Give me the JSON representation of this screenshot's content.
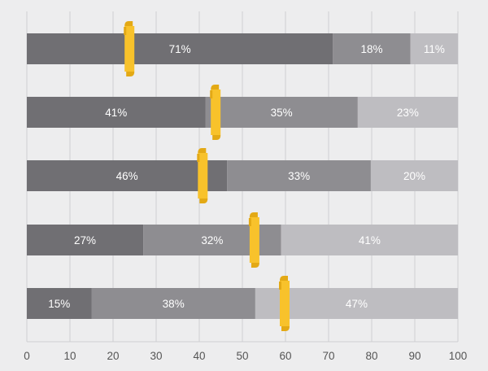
{
  "chart_data": {
    "type": "bar",
    "orientation": "horizontal",
    "stacked": true,
    "rows": [
      {
        "values": [
          71,
          18,
          11
        ],
        "labels": [
          "71%",
          "18%",
          "11%"
        ],
        "marker": 24
      },
      {
        "values": [
          41,
          35,
          23
        ],
        "labels": [
          "41%",
          "35%",
          "23%"
        ],
        "marker": 44
      },
      {
        "values": [
          46,
          33,
          20
        ],
        "labels": [
          "46%",
          "33%",
          "20%"
        ],
        "marker": 41
      },
      {
        "values": [
          27,
          32,
          41
        ],
        "labels": [
          "27%",
          "32%",
          "41%"
        ],
        "marker": 53
      },
      {
        "values": [
          15,
          38,
          47
        ],
        "labels": [
          "15%",
          "38%",
          "47%"
        ],
        "marker": 60
      }
    ],
    "xlim": [
      0,
      100
    ],
    "xticks": [
      "0",
      "10",
      "20",
      "30",
      "40",
      "50",
      "60",
      "70",
      "80",
      "90",
      "100"
    ],
    "grid": true,
    "colors": {
      "segments": [
        "#706f73",
        "#8e8d91",
        "#bebdc1"
      ],
      "marker": "#f8c22b",
      "marker_shadow": "#e3a915",
      "grid": "#cfcfd2",
      "background": "#ededee"
    }
  }
}
